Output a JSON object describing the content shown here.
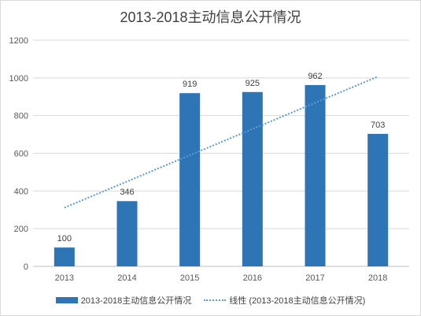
{
  "chart_data": {
    "type": "bar",
    "title": "2013-2018主动信息公开情况",
    "categories": [
      "2013",
      "2014",
      "2015",
      "2016",
      "2017",
      "2018"
    ],
    "series": [
      {
        "name": "2013-2018主动信息公开情况",
        "values": [
          100,
          346,
          919,
          925,
          962,
          703
        ],
        "color": "#2e75b6"
      }
    ],
    "trendline": {
      "name": "线性 (2013-2018主动信息公开情况)",
      "type": "linear",
      "color": "#5b9bd5",
      "style": "dotted"
    },
    "ylim": [
      0,
      1200
    ],
    "yticks": [
      0,
      200,
      400,
      600,
      800,
      1000,
      1200
    ],
    "grid": true,
    "legend": "bottom",
    "data_labels": true
  }
}
